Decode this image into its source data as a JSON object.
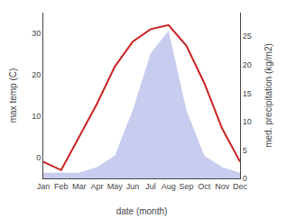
{
  "chart_data": {
    "type": "line",
    "xlabel": "date (month)",
    "ylabel": "max temp (C)",
    "y2label": "med. precipitation (kg/m2)",
    "categories": [
      "Jan",
      "Feb",
      "Mar",
      "Apr",
      "May",
      "Jun",
      "Jul",
      "Aug",
      "Sep",
      "Oct",
      "Nov",
      "Dec"
    ],
    "series": [
      {
        "type": "area",
        "axis": "y2",
        "color": "#c8ccee",
        "values": [
          1,
          1,
          1,
          2,
          4,
          12,
          22,
          26,
          12,
          4,
          2,
          1
        ]
      },
      {
        "type": "line",
        "color": "#cc2222",
        "values": [
          -1,
          -3,
          5,
          13,
          22,
          28,
          31,
          32,
          27,
          18,
          7,
          -1
        ]
      }
    ],
    "ylim": [
      -5,
      35
    ],
    "yticks": [
      0,
      10,
      20,
      30
    ],
    "y2lim": [
      0,
      29.17
    ],
    "y2ticks": [
      0,
      5,
      10,
      15,
      20,
      25
    ],
    "grid": false
  }
}
